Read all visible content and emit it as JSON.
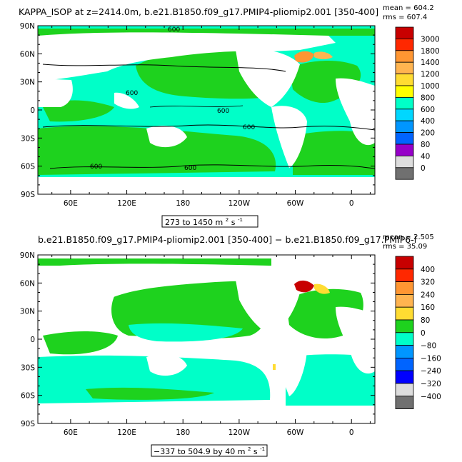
{
  "chart_data": [
    {
      "type": "heatmap",
      "title": "KAPPA_ISOP at z=2414.0m, b.e21.B1850.f09_g17.PMIP4-pliomip2.001 [350-400]",
      "stats": {
        "mean": "mean = 604.2",
        "rms": "rms = 607.4"
      },
      "x_ticks": [
        "60E",
        "120E",
        "180",
        "120W",
        "60W",
        "0"
      ],
      "y_ticks": [
        "90N",
        "60N",
        "30N",
        "0",
        "30S",
        "60S",
        "90S"
      ],
      "colorbar_labels": [
        "3000",
        "1800",
        "1400",
        "1200",
        "1000",
        "800",
        "600",
        "400",
        "200",
        "80",
        "40",
        "0"
      ],
      "colorbar_colors": [
        "#c80000",
        "#ff2800",
        "#ff6400",
        "#ff9632",
        "#ffb450",
        "#ffdc32",
        "#ffff00",
        "#1ed21e",
        "#00ffc8",
        "#00d7ff",
        "#0096ff",
        "#0064ff",
        "#0000ff",
        "#9600c8",
        "#dddddd",
        "#707070"
      ],
      "contour_labels": [
        "600",
        "600",
        "600",
        "600",
        "600",
        "600"
      ],
      "range_label": "273 to 1450 m",
      "unit_exp": "2",
      "unit_suffix": " s",
      "unit_exp2": "-1"
    },
    {
      "type": "heatmap",
      "title": "b.e21.B1850.f09_g17.PMIP4-pliomip2.001 [350-400] − b.e21.B1850.f09_g17.PMIP6-l",
      "stats": {
        "mean": "mean = 2.505",
        "rms": "rms = 35.09"
      },
      "x_ticks": [
        "60E",
        "120E",
        "180",
        "120W",
        "60W",
        "0"
      ],
      "y_ticks": [
        "90N",
        "60N",
        "30N",
        "0",
        "30S",
        "60S",
        "90S"
      ],
      "colorbar_labels": [
        "400",
        "320",
        "240",
        "160",
        "80",
        "0",
        "−80",
        "−160",
        "−240",
        "−320",
        "−400"
      ],
      "colorbar_colors": [
        "#c80000",
        "#ff2800",
        "#ff6400",
        "#ff9632",
        "#ffb450",
        "#ffdc32",
        "#ffff00",
        "#1ed21e",
        "#00ffc8",
        "#00d7ff",
        "#0096ff",
        "#0064ff",
        "#0000ff",
        "#9600c8",
        "#dddddd",
        "#707070"
      ],
      "range_label": "−337 to 504.9 by 40 m",
      "unit_exp": "2",
      "unit_suffix": " s",
      "unit_exp2": "-1"
    }
  ]
}
